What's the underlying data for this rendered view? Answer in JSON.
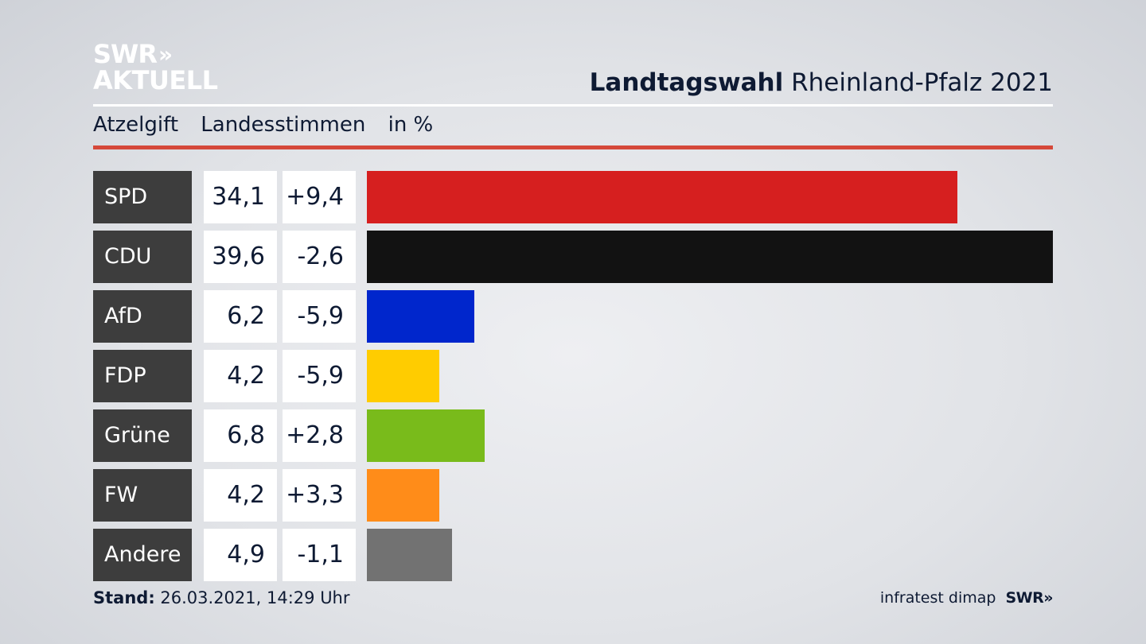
{
  "logo": {
    "line1": "SWR",
    "chevrons": "»",
    "line2": "AKTUELL"
  },
  "header": {
    "title_bold": "Landtagswahl",
    "title_rest": "Rheinland-Pfalz 2021"
  },
  "subtitle": {
    "place": "Atzelgift",
    "metric": "Landesstimmen",
    "unit": "in %"
  },
  "chart_data": {
    "type": "bar",
    "orientation": "horizontal",
    "categories": [
      "SPD",
      "CDU",
      "AfD",
      "FDP",
      "Grüne",
      "FW",
      "Andere"
    ],
    "values": [
      34.1,
      39.6,
      6.2,
      4.2,
      6.8,
      4.2,
      4.9
    ],
    "value_labels": [
      "34,1",
      "39,6",
      "6,2",
      "4,2",
      "6,8",
      "4,2",
      "4,9"
    ],
    "change_labels": [
      "+9,4",
      "-2,6",
      "-5,9",
      "-5,9",
      "+2,8",
      "+3,3",
      "-1,1"
    ],
    "changes": [
      9.4,
      -2.6,
      -5.9,
      -5.9,
      2.8,
      3.3,
      -1.1
    ],
    "colors": [
      "#d61f1f",
      "#121212",
      "#0026cc",
      "#ffcc00",
      "#79bb1b",
      "#ff8c19",
      "#727272"
    ],
    "xlim": [
      0,
      39.6
    ]
  },
  "footer": {
    "stand_label": "Stand:",
    "stand_value": "26.03.2021, 14:29 Uhr",
    "source": "infratest dimap",
    "brand": "SWR",
    "brand_chevrons": "»"
  }
}
